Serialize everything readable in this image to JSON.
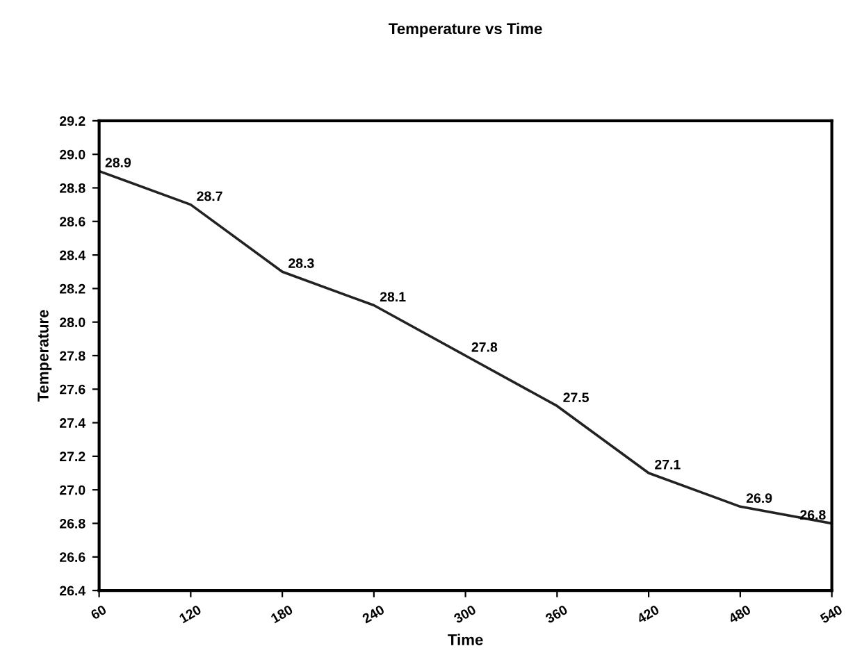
{
  "chart_data": {
    "type": "line",
    "title": "Temperature vs Time",
    "xlabel": "Time",
    "ylabel": "Temperature",
    "x": [
      60,
      120,
      180,
      240,
      300,
      360,
      420,
      480,
      540
    ],
    "series": [
      {
        "color": "#222222",
        "values": [
          28.9,
          28.7,
          28.3,
          28.1,
          27.8,
          27.5,
          27.1,
          26.9,
          26.8
        ]
      }
    ],
    "xlim": [
      60,
      540
    ],
    "xticks": [
      60,
      120,
      180,
      240,
      300,
      360,
      420,
      480,
      540
    ],
    "ylim": [
      26.4,
      29.2
    ],
    "yticks": [
      {
        "value": 26.4,
        "label": "26.4"
      },
      {
        "value": 26.6,
        "label": "26.6"
      },
      {
        "value": 26.8,
        "label": "26.8"
      },
      {
        "value": 27.0,
        "label": "27.0"
      },
      {
        "value": 27.2,
        "label": "27.2"
      },
      {
        "value": 27.4,
        "label": "27.4"
      },
      {
        "value": 27.6,
        "label": "27.6"
      },
      {
        "value": 27.8,
        "label": "27.8"
      },
      {
        "value": 28.0,
        "label": "28.0"
      },
      {
        "value": 28.2,
        "label": "28.2"
      },
      {
        "value": 28.4,
        "label": "28.4"
      },
      {
        "value": 28.6,
        "label": "28.6"
      },
      {
        "value": 28.8,
        "label": "28.8"
      },
      {
        "value": 29.0,
        "label": "29.0"
      },
      {
        "value": 29.2,
        "label": "29.2"
      }
    ],
    "grid": false,
    "legend": false,
    "marker": "none",
    "line_style": "solid",
    "data_labels": true
  }
}
